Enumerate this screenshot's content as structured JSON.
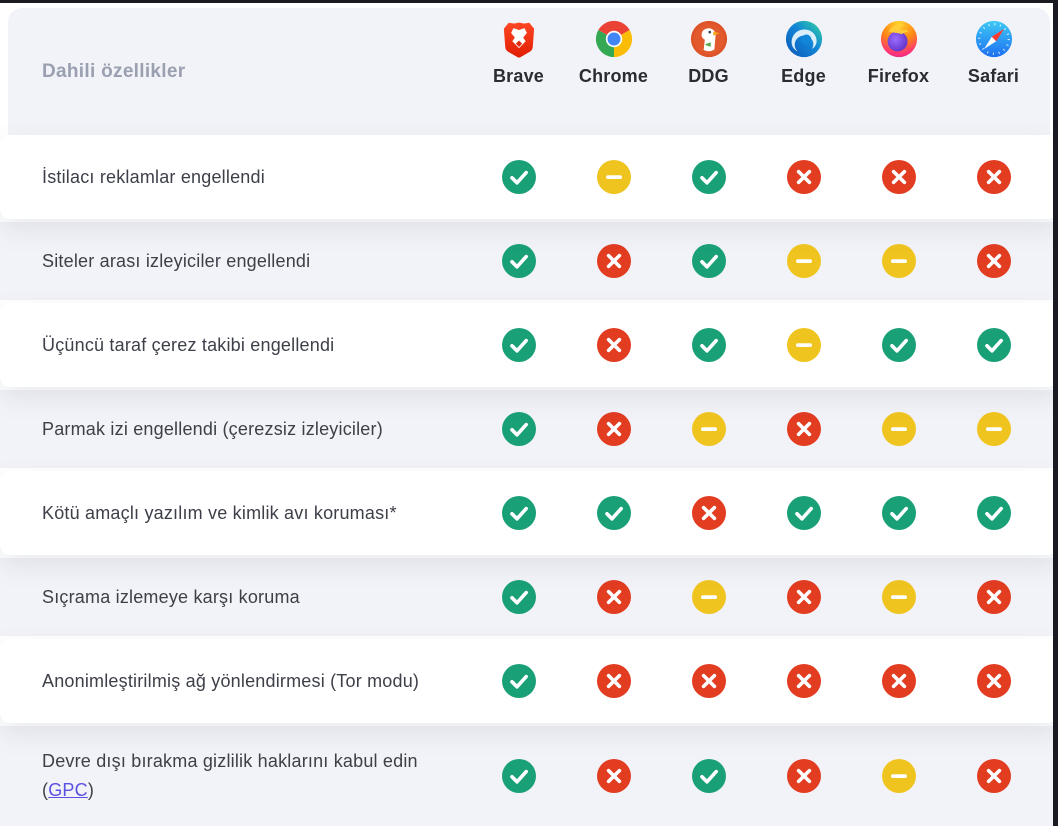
{
  "table": {
    "header_label": "Dahili özellikler",
    "browsers": [
      {
        "name": "Brave",
        "icon": "brave-lion-icon"
      },
      {
        "name": "Chrome",
        "icon": "chrome-icon"
      },
      {
        "name": "DDG",
        "icon": "duckduckgo-icon"
      },
      {
        "name": "Edge",
        "icon": "edge-icon"
      },
      {
        "name": "Firefox",
        "icon": "firefox-icon"
      },
      {
        "name": "Safari",
        "icon": "safari-icon"
      }
    ],
    "status_colors": {
      "yes": "#1aa077",
      "partial": "#f0c41f",
      "no": "#e23c21"
    },
    "status_glyphs": {
      "yes": "check",
      "partial": "dash",
      "no": "cross"
    },
    "rows": [
      {
        "feature": "İstilacı reklamlar engellendi",
        "values": [
          "yes",
          "partial",
          "yes",
          "no",
          "no",
          "no"
        ]
      },
      {
        "feature": "Siteler arası izleyiciler engellendi",
        "values": [
          "yes",
          "no",
          "yes",
          "partial",
          "partial",
          "no"
        ]
      },
      {
        "feature": "Üçüncü taraf çerez takibi engellendi",
        "values": [
          "yes",
          "no",
          "yes",
          "partial",
          "yes",
          "yes"
        ]
      },
      {
        "feature": "Parmak izi engellendi (çerezsiz izleyiciler)",
        "values": [
          "yes",
          "no",
          "partial",
          "no",
          "partial",
          "partial"
        ]
      },
      {
        "feature": "Kötü amaçlı yazılım ve kimlik avı koruması*",
        "values": [
          "yes",
          "yes",
          "no",
          "yes",
          "yes",
          "yes"
        ]
      },
      {
        "feature": "Sıçrama izlemeye karşı koruma",
        "values": [
          "yes",
          "no",
          "partial",
          "no",
          "partial",
          "no"
        ]
      },
      {
        "feature": "Anonimleştirilmiş ağ yönlendirmesi (Tor modu)",
        "values": [
          "yes",
          "no",
          "no",
          "no",
          "no",
          "no"
        ]
      },
      {
        "feature": "Devre dışı bırakma gizlilik haklarını kabul edin",
        "link_open": "(",
        "link_label": "GPC",
        "link_close": ")",
        "values": [
          "yes",
          "no",
          "yes",
          "no",
          "partial",
          "no"
        ]
      }
    ]
  }
}
